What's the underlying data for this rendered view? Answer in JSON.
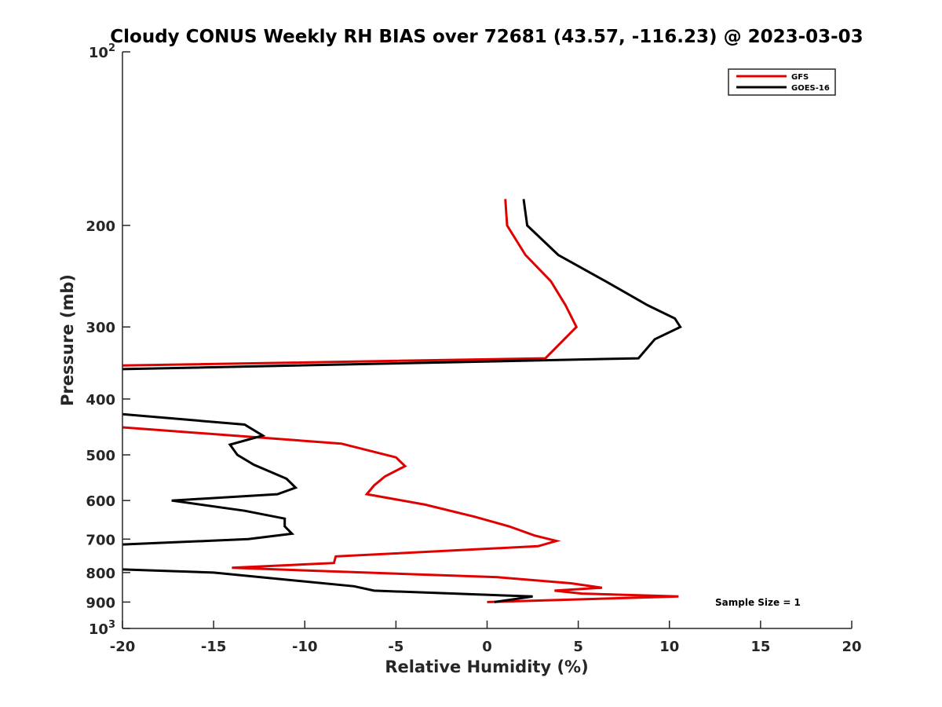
{
  "chart_data": {
    "type": "line",
    "title": "Cloudy CONUS Weekly RH BIAS over 72681 (43.57, -116.23) @ 2023-03-03",
    "xlabel": "Relative Humidity (%)",
    "ylabel": "Pressure (mb)",
    "xlim": [
      -20,
      20
    ],
    "ylim": [
      100,
      1000
    ],
    "y_scale": "log",
    "y_reversed": true,
    "grid": false,
    "legend_position": "top-right",
    "x_ticks": [
      -20,
      -15,
      -10,
      -5,
      0,
      5,
      10,
      15,
      20
    ],
    "x_tick_labels": [
      "-20",
      "-15",
      "-10",
      "-5",
      "0",
      "5",
      "10",
      "15",
      "20"
    ],
    "y_ticks": [
      {
        "value": 100,
        "base": "10",
        "exp": "2"
      },
      {
        "value": 200,
        "label": "200"
      },
      {
        "value": 300,
        "label": "300"
      },
      {
        "value": 400,
        "label": "400"
      },
      {
        "value": 500,
        "label": "500"
      },
      {
        "value": 600,
        "label": "600"
      },
      {
        "value": 700,
        "label": "700"
      },
      {
        "value": 800,
        "label": "800"
      },
      {
        "value": 900,
        "label": "900"
      },
      {
        "value": 1000,
        "base": "10",
        "exp": "3"
      }
    ],
    "series": [
      {
        "name": "GFS",
        "color": "#e00000",
        "segments": [
          [
            [
              1.0,
              180
            ],
            [
              1.1,
              200
            ],
            [
              2.1,
              225
            ],
            [
              3.5,
              250
            ],
            [
              4.3,
              275
            ],
            [
              4.9,
              300
            ],
            [
              3.2,
              340
            ],
            [
              -20,
              350
            ]
          ],
          [
            [
              -20,
              448
            ],
            [
              -8.0,
              478
            ],
            [
              -5.0,
              505
            ],
            [
              -4.5,
              523
            ],
            [
              -5.6,
              545
            ],
            [
              -6.2,
              565
            ],
            [
              -6.6,
              585
            ],
            [
              -3.4,
              610
            ],
            [
              -0.7,
              640
            ],
            [
              1.2,
              665
            ],
            [
              2.6,
              690
            ],
            [
              3.8,
              705
            ],
            [
              2.8,
              720
            ],
            [
              -8.3,
              750
            ],
            [
              -8.4,
              770
            ],
            [
              -14.0,
              785
            ],
            [
              0.6,
              815
            ],
            [
              4.6,
              835
            ],
            [
              6.3,
              850
            ],
            [
              3.7,
              860
            ],
            [
              5.2,
              870
            ],
            [
              10.5,
              880
            ],
            [
              0.0,
              900
            ]
          ]
        ]
      },
      {
        "name": "GOES-16",
        "color": "#000000",
        "segments": [
          [
            [
              2.0,
              180
            ],
            [
              2.2,
              200
            ],
            [
              3.9,
              225
            ],
            [
              6.5,
              250
            ],
            [
              8.8,
              275
            ],
            [
              10.3,
              290
            ],
            [
              10.6,
              300
            ],
            [
              9.2,
              315
            ],
            [
              8.3,
              340
            ],
            [
              -20,
              355
            ]
          ],
          [
            [
              -20,
              425
            ],
            [
              -13.3,
              443
            ],
            [
              -12.3,
              463
            ],
            [
              -14.1,
              480
            ],
            [
              -13.7,
              500
            ],
            [
              -12.8,
              520
            ],
            [
              -11.0,
              550
            ],
            [
              -10.5,
              570
            ],
            [
              -11.5,
              585
            ],
            [
              -17.3,
              600
            ],
            [
              -13.3,
              625
            ],
            [
              -11.1,
              645
            ],
            [
              -11.1,
              665
            ],
            [
              -10.7,
              685
            ],
            [
              -13.1,
              700
            ],
            [
              -20,
              715
            ]
          ],
          [
            [
              -20,
              790
            ],
            [
              -15.0,
              800
            ],
            [
              -7.3,
              845
            ],
            [
              -6.2,
              860
            ],
            [
              2.5,
              880
            ],
            [
              0.4,
              900
            ]
          ]
        ]
      }
    ],
    "annotation": "Sample Size = 1"
  }
}
